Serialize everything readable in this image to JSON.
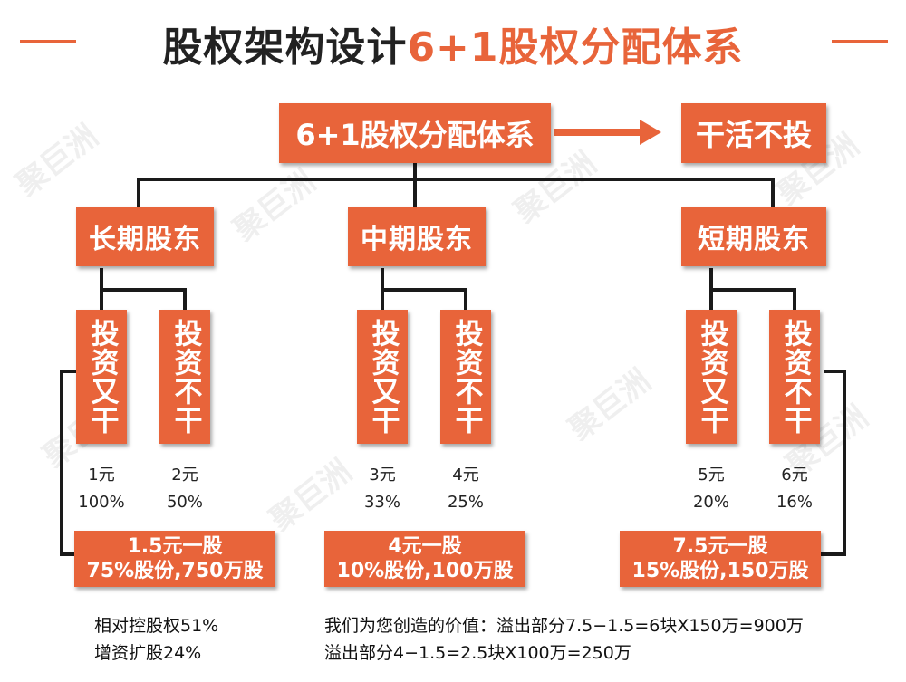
{
  "title": {
    "part1": "股权架构设计",
    "part2": "6+1股权分配体系"
  },
  "root": {
    "label": "6+1股权分配体系"
  },
  "side": {
    "label": "干活不投"
  },
  "shareholders": [
    {
      "label": "长期股东",
      "children": [
        {
          "label": "投资又干",
          "price": "1元",
          "percent": "100%"
        },
        {
          "label": "投资不干",
          "price": "2元",
          "percent": "50%"
        }
      ],
      "summary": {
        "line1": "1.5元一股",
        "line2": "75%股份,750万股"
      }
    },
    {
      "label": "中期股东",
      "children": [
        {
          "label": "投资又干",
          "price": "3元",
          "percent": "33%"
        },
        {
          "label": "投资不干",
          "price": "4元",
          "percent": "25%"
        }
      ],
      "summary": {
        "line1": "4元一股",
        "line2": "10%股份,100万股"
      }
    },
    {
      "label": "短期股东",
      "children": [
        {
          "label": "投资又干",
          "price": "5元",
          "percent": "20%"
        },
        {
          "label": "投资不干",
          "price": "6元",
          "percent": "16%"
        }
      ],
      "summary": {
        "line1": "7.5元一股",
        "line2": "15%股份,150万股"
      }
    }
  ],
  "notes": {
    "left1": "相对控股权51%",
    "left2": "增资扩股24%",
    "right1": "我们为您创造的价值：溢出部分7.5−1.5=6块X150万=900万",
    "right2": "溢出部分4−1.5=2.5块X100万=250万"
  },
  "watermark": "聚巨洲",
  "colors": {
    "accent": "#e8643a",
    "line": "#1a1a1a"
  }
}
